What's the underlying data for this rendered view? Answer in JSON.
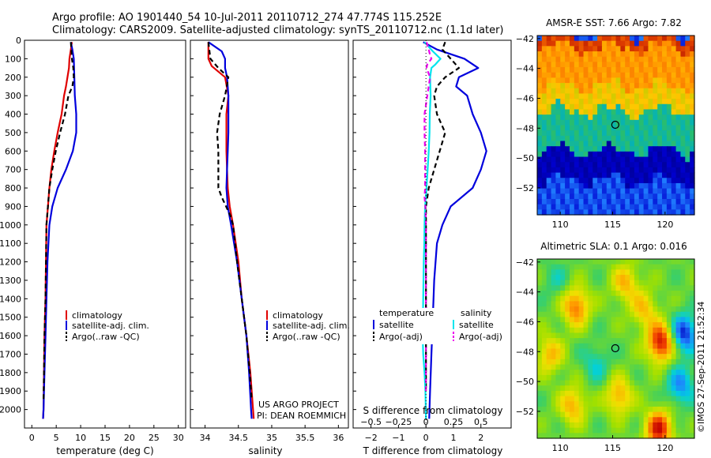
{
  "header": {
    "line1": "Argo profile: AO 1901440_54 10-Jul-2011 20110712_274 47.774S 115.252E",
    "line2": "Climatology: CARS2009. Satellite-adjusted climatology: synTS_20110712.nc (1.1d later)"
  },
  "stamp": "©IMOS 27-Sep-2011 21:52:34",
  "colors": {
    "red": "#e00000",
    "blue": "#0000dd",
    "black": "#000000",
    "cyan": "#00e5ee",
    "magenta": "#ee00ee"
  },
  "chart_data": [
    {
      "type": "line",
      "xlabel": "temperature (deg C)",
      "ylim": [
        2100,
        0
      ],
      "yticks": [
        0,
        100,
        200,
        300,
        400,
        500,
        600,
        700,
        800,
        900,
        1000,
        1100,
        1200,
        1300,
        1400,
        1500,
        1600,
        1700,
        1800,
        1900,
        2000
      ],
      "xlim": [
        -1.5,
        31.5
      ],
      "xticks": [
        0,
        5,
        10,
        15,
        20,
        25,
        30
      ],
      "legend": {
        "placement": "lower-center",
        "entries": [
          "climatology",
          "satellite-adj. clim.",
          "Argo(..raw -QC)"
        ]
      },
      "series": [
        {
          "name": "climatology",
          "color": "#e00000",
          "dashed": false,
          "points": [
            [
              8.2,
              10
            ],
            [
              8.0,
              50
            ],
            [
              7.7,
              100
            ],
            [
              7.6,
              150
            ],
            [
              7.3,
              200
            ],
            [
              7.0,
              250
            ],
            [
              6.6,
              300
            ],
            [
              6.1,
              400
            ],
            [
              5.3,
              500
            ],
            [
              4.6,
              600
            ],
            [
              4.0,
              700
            ],
            [
              3.6,
              800
            ],
            [
              3.3,
              900
            ],
            [
              3.0,
              1000
            ],
            [
              2.9,
              1200
            ],
            [
              2.8,
              1400
            ],
            [
              2.6,
              1600
            ],
            [
              2.5,
              1800
            ],
            [
              2.4,
              2000
            ],
            [
              2.3,
              2050
            ]
          ]
        },
        {
          "name": "satellite-adj. clim.",
          "color": "#0000dd",
          "dashed": false,
          "points": [
            [
              8.0,
              10
            ],
            [
              8.3,
              50
            ],
            [
              8.6,
              100
            ],
            [
              8.7,
              200
            ],
            [
              8.8,
              300
            ],
            [
              9.1,
              400
            ],
            [
              9.1,
              500
            ],
            [
              8.4,
              600
            ],
            [
              7.0,
              700
            ],
            [
              5.3,
              800
            ],
            [
              4.2,
              900
            ],
            [
              3.6,
              1000
            ],
            [
              3.2,
              1200
            ],
            [
              3.0,
              1400
            ],
            [
              2.8,
              1600
            ],
            [
              2.6,
              1800
            ],
            [
              2.4,
              2000
            ],
            [
              2.3,
              2050
            ]
          ]
        },
        {
          "name": "Argo(..raw -QC)",
          "color": "#000000",
          "dashed": true,
          "points": [
            [
              8.0,
              10
            ],
            [
              8.2,
              100
            ],
            [
              8.5,
              150
            ],
            [
              8.6,
              200
            ],
            [
              8.3,
              250
            ],
            [
              7.5,
              300
            ],
            [
              6.8,
              400
            ],
            [
              5.8,
              500
            ],
            [
              4.9,
              600
            ],
            [
              4.2,
              700
            ],
            [
              3.6,
              800
            ],
            [
              3.3,
              900
            ],
            [
              3.0,
              1000
            ],
            [
              2.9,
              1200
            ],
            [
              2.8,
              1400
            ],
            [
              2.6,
              1600
            ],
            [
              2.5,
              1800
            ],
            [
              2.4,
              1950
            ]
          ]
        }
      ]
    },
    {
      "type": "line",
      "xlabel": "salinity",
      "ylim": [
        2100,
        0
      ],
      "xlim": [
        33.78,
        36.15
      ],
      "xticks": [
        34,
        34.5,
        35,
        35.5,
        36
      ],
      "footnote": [
        "US ARGO PROJECT",
        "PI: DEAN ROEMMICH"
      ],
      "legend": {
        "placement": "lower-center",
        "entries": [
          "climatology",
          "satellite-adj. clim.",
          "Argo(..raw -QC)"
        ]
      },
      "series": [
        {
          "name": "climatology",
          "color": "#e00000",
          "dashed": false,
          "points": [
            [
              34.05,
              10
            ],
            [
              34.05,
              100
            ],
            [
              34.1,
              140
            ],
            [
              34.3,
              200
            ],
            [
              34.35,
              300
            ],
            [
              34.32,
              400
            ],
            [
              34.32,
              500
            ],
            [
              34.32,
              600
            ],
            [
              34.33,
              700
            ],
            [
              34.34,
              800
            ],
            [
              34.37,
              900
            ],
            [
              34.42,
              1000
            ],
            [
              34.5,
              1200
            ],
            [
              34.55,
              1400
            ],
            [
              34.62,
              1600
            ],
            [
              34.68,
              1800
            ],
            [
              34.72,
              2000
            ],
            [
              34.73,
              2050
            ]
          ]
        },
        {
          "name": "satellite-adj. clim.",
          "color": "#0000dd",
          "dashed": false,
          "points": [
            [
              34.05,
              10
            ],
            [
              34.25,
              60
            ],
            [
              34.3,
              100
            ],
            [
              34.3,
              150
            ],
            [
              34.33,
              200
            ],
            [
              34.35,
              300
            ],
            [
              34.35,
              400
            ],
            [
              34.35,
              500
            ],
            [
              34.34,
              600
            ],
            [
              34.33,
              700
            ],
            [
              34.32,
              800
            ],
            [
              34.34,
              900
            ],
            [
              34.39,
              1000
            ],
            [
              34.48,
              1200
            ],
            [
              34.55,
              1400
            ],
            [
              34.62,
              1600
            ],
            [
              34.66,
              1800
            ],
            [
              34.69,
              2000
            ],
            [
              34.7,
              2050
            ]
          ]
        },
        {
          "name": "Argo(..raw -QC)",
          "color": "#000000",
          "dashed": true,
          "points": [
            [
              34.05,
              10
            ],
            [
              34.08,
              100
            ],
            [
              34.2,
              150
            ],
            [
              34.35,
              200
            ],
            [
              34.3,
              300
            ],
            [
              34.22,
              400
            ],
            [
              34.18,
              500
            ],
            [
              34.2,
              600
            ],
            [
              34.2,
              700
            ],
            [
              34.2,
              800
            ],
            [
              34.25,
              850
            ],
            [
              34.38,
              950
            ],
            [
              34.42,
              1000
            ],
            [
              34.48,
              1200
            ],
            [
              34.55,
              1400
            ],
            [
              34.62,
              1600
            ],
            [
              34.67,
              1800
            ],
            [
              34.7,
              1950
            ]
          ]
        }
      ]
    },
    {
      "type": "line",
      "xlabel": "T difference from climatology",
      "xlabel_top": "S difference from climatology",
      "ylim": [
        2100,
        0
      ],
      "xlim": [
        -2.65,
        3.1
      ],
      "xticks": [
        -2,
        -1,
        0,
        1,
        2
      ],
      "s_xticks": [
        -0.5,
        -0.25,
        0,
        0.25,
        0.5
      ],
      "legend": {
        "placement": "lower-center",
        "headings": [
          "temperature",
          "salinity"
        ],
        "entries": [
          "satellite",
          "Argo(-adj)",
          "satellite",
          "Argo(-adj)"
        ]
      },
      "series": [
        {
          "name": "satellite",
          "group": "temperature",
          "color": "#0000dd",
          "dashed": false,
          "points": [
            [
              -0.1,
              10
            ],
            [
              0.4,
              50
            ],
            [
              1.4,
              100
            ],
            [
              1.9,
              150
            ],
            [
              1.2,
              200
            ],
            [
              1.1,
              250
            ],
            [
              1.5,
              300
            ],
            [
              1.7,
              400
            ],
            [
              2.0,
              500
            ],
            [
              2.2,
              600
            ],
            [
              2.0,
              700
            ],
            [
              1.7,
              800
            ],
            [
              0.9,
              900
            ],
            [
              0.6,
              1000
            ],
            [
              0.4,
              1100
            ],
            [
              0.3,
              1300
            ],
            [
              0.25,
              1500
            ],
            [
              0.2,
              1700
            ],
            [
              0.15,
              1900
            ],
            [
              0.12,
              2050
            ]
          ]
        },
        {
          "name": "Argo(-adj)",
          "group": "temperature",
          "color": "#000000",
          "dashed": true,
          "points": [
            [
              0.7,
              10
            ],
            [
              0.6,
              50
            ],
            [
              0.9,
              100
            ],
            [
              1.2,
              150
            ],
            [
              0.7,
              200
            ],
            [
              0.4,
              250
            ],
            [
              0.3,
              300
            ],
            [
              0.4,
              400
            ],
            [
              0.7,
              500
            ],
            [
              0.5,
              600
            ],
            [
              0.3,
              700
            ],
            [
              0.1,
              800
            ],
            [
              0.0,
              900
            ],
            [
              0.0,
              1000
            ],
            [
              0.0,
              1300
            ],
            [
              0.0,
              1600
            ],
            [
              0.0,
              1900
            ]
          ]
        },
        {
          "name": "satellite",
          "group": "salinity",
          "color": "#00e5ee",
          "dashed": false,
          "points": [
            [
              -0.05,
              10
            ],
            [
              0.25,
              60
            ],
            [
              0.53,
              100
            ],
            [
              0.35,
              130
            ],
            [
              0.2,
              150
            ],
            [
              0.15,
              200
            ],
            [
              0.17,
              300
            ],
            [
              0.14,
              400
            ],
            [
              0.13,
              500
            ],
            [
              0.1,
              600
            ],
            [
              0.06,
              700
            ],
            [
              0.02,
              800
            ],
            [
              -0.03,
              900
            ],
            [
              -0.05,
              1000
            ],
            [
              -0.06,
              1100
            ],
            [
              -0.08,
              1200
            ],
            [
              -0.1,
              1400
            ],
            [
              -0.12,
              1600
            ],
            [
              -0.1,
              1700
            ],
            [
              -0.05,
              1800
            ],
            [
              -0.02,
              1900
            ],
            [
              0.0,
              2050
            ]
          ]
        },
        {
          "name": "Argo(-adj)",
          "group": "salinity",
          "color": "#ee00ee",
          "dashed": true,
          "points": [
            [
              0.02,
              10
            ],
            [
              0.1,
              50
            ],
            [
              0.15,
              80
            ],
            [
              0.2,
              100
            ],
            [
              0.05,
              130
            ],
            [
              0.02,
              150
            ],
            [
              0.15,
              200
            ],
            [
              0.05,
              300
            ],
            [
              -0.05,
              400
            ],
            [
              -0.05,
              500
            ],
            [
              -0.03,
              600
            ],
            [
              -0.03,
              700
            ],
            [
              -0.03,
              800
            ],
            [
              -0.05,
              850
            ],
            [
              -0.02,
              900
            ],
            [
              0.0,
              1000
            ],
            [
              0.0,
              1300
            ],
            [
              0.0,
              1600
            ],
            [
              0.0,
              1900
            ]
          ]
        }
      ]
    },
    {
      "type": "heatmap",
      "title": "AMSR-E SST: 7.66 Argo: 7.82",
      "xlim": [
        107.8,
        122.8
      ],
      "ylim": [
        -53.8,
        -41.8
      ],
      "xticks": [
        110,
        115,
        120
      ],
      "yticks": [
        -42,
        -44,
        -46,
        -48,
        -50,
        -52
      ],
      "marker": {
        "lon": 115.252,
        "lat": -47.774
      },
      "palette": [
        "#a00000",
        "#e04000",
        "#ff8c00",
        "#ffc800",
        "#9ad000",
        "#30c060",
        "#00b0c0",
        "#2080ff",
        "#0000d0",
        "#000090"
      ],
      "bands": [
        {
          "lat_top": -41.8,
          "lat_bottom": -42.6,
          "level": 1.0
        },
        {
          "lat_top": -42.6,
          "lat_bottom": -45.2,
          "level": 2.2
        },
        {
          "lat_top": -45.2,
          "lat_bottom": -46.8,
          "level": 3.1
        },
        {
          "lat_top": -46.8,
          "lat_bottom": -49.5,
          "level": 5.5
        },
        {
          "lat_top": -49.5,
          "lat_bottom": -51.5,
          "level": 8.4
        },
        {
          "lat_top": -51.5,
          "lat_bottom": -53.8,
          "level": 7.4
        }
      ]
    },
    {
      "type": "heatmap",
      "title": "Altimetric SLA: 0.1 Argo: 0.016",
      "xlim": [
        107.8,
        122.8
      ],
      "ylim": [
        -53.8,
        -41.8
      ],
      "xticks": [
        110,
        115,
        120
      ],
      "yticks": [
        -42,
        -44,
        -46,
        -48,
        -50,
        -52
      ],
      "marker": {
        "lon": 115.252,
        "lat": -47.774
      },
      "palette": [
        "#0000c0",
        "#2080ff",
        "#00d0e0",
        "#40d060",
        "#a0e000",
        "#f0e000",
        "#ffa000",
        "#f04000",
        "#c00000"
      ],
      "base_level": 3.4,
      "blobs": [
        {
          "lon": 121.8,
          "lat": -46.8,
          "level": 0.2
        },
        {
          "lon": 121.5,
          "lat": -50.3,
          "level": 1.2
        },
        {
          "lon": 119.6,
          "lat": -47.4,
          "level": 7.8
        },
        {
          "lon": 119.4,
          "lat": -53.2,
          "level": 7.6
        },
        {
          "lon": 111.5,
          "lat": -45.0,
          "level": 6.6
        },
        {
          "lon": 111.2,
          "lat": -51.6,
          "level": 5.8
        },
        {
          "lon": 115.6,
          "lat": -51.0,
          "level": 5.9
        },
        {
          "lon": 116.2,
          "lat": -43.4,
          "level": 5.6
        },
        {
          "lon": 118.0,
          "lat": -45.2,
          "level": 5.4
        },
        {
          "lon": 109.0,
          "lat": -48.2,
          "level": 5.6
        },
        {
          "lon": 113.4,
          "lat": -48.8,
          "level": 2.2
        },
        {
          "lon": 109.6,
          "lat": -43.2,
          "level": 2.6
        }
      ]
    }
  ]
}
